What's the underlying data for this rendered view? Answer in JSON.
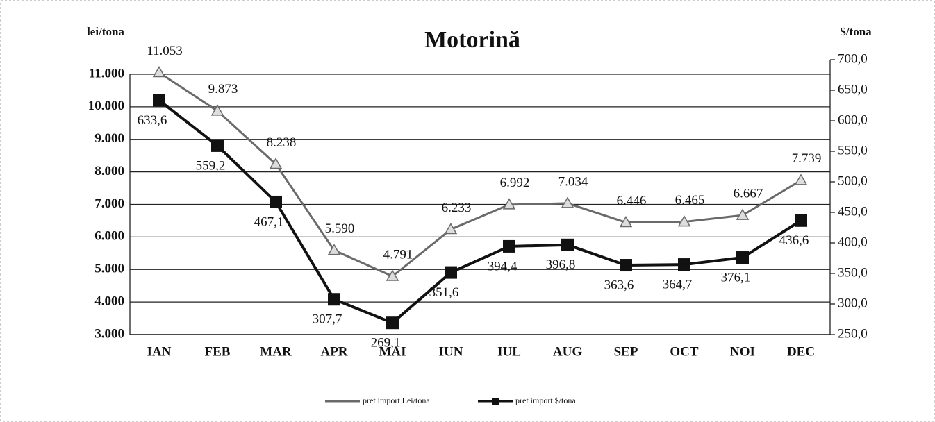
{
  "chart_data": {
    "type": "line",
    "title": "Motorină",
    "ylabel": "lei/tona",
    "y2label": "$/tona",
    "categories": [
      "IAN",
      "FEB",
      "MAR",
      "APR",
      "MAI",
      "IUN",
      "IUL",
      "AUG",
      "SEP",
      "OCT",
      "NOI",
      "DEC"
    ],
    "ylim": [
      3000,
      11000
    ],
    "yticks": [
      {
        "value": 3000,
        "label": "3.000"
      },
      {
        "value": 4000,
        "label": "4.000"
      },
      {
        "value": 5000,
        "label": "5.000"
      },
      {
        "value": 6000,
        "label": "6.000"
      },
      {
        "value": 7000,
        "label": "7.000"
      },
      {
        "value": 8000,
        "label": "8.000"
      },
      {
        "value": 9000,
        "label": "9.000"
      },
      {
        "value": 10000,
        "label": "10.000"
      },
      {
        "value": 11000,
        "label": "11.000"
      }
    ],
    "y2lim": [
      250,
      700
    ],
    "y2ticks": [
      {
        "value": 250,
        "label": "250,0"
      },
      {
        "value": 300,
        "label": "300,0"
      },
      {
        "value": 350,
        "label": "350,0"
      },
      {
        "value": 400,
        "label": "400,0"
      },
      {
        "value": 450,
        "label": "450,0"
      },
      {
        "value": 500,
        "label": "500,0"
      },
      {
        "value": 550,
        "label": "550,0"
      },
      {
        "value": 600,
        "label": "600,0"
      },
      {
        "value": 650,
        "label": "650,0"
      },
      {
        "value": 700,
        "label": "700,0"
      }
    ],
    "grid": true,
    "legend": "bottom",
    "series": [
      {
        "name": "pret import Lei/tona",
        "color": "#6a6a6a",
        "marker": "triangle",
        "values": [
          11053,
          9873,
          8238,
          5590,
          4791,
          6233,
          6992,
          7034,
          6446,
          6465,
          6667,
          7739
        ],
        "value_labels": [
          "11.053",
          "9.873",
          "8.238",
          "5.590",
          "4.791",
          "6.233",
          "6.992",
          "7.034",
          "6.446",
          "6.465",
          "6.667",
          "7.739"
        ]
      },
      {
        "name": "pret import $/tona",
        "color": "#111111",
        "marker": "square",
        "axis": "y2",
        "values": [
          633.6,
          559.2,
          467.1,
          307.7,
          269.1,
          351.6,
          394.4,
          396.8,
          363.6,
          364.7,
          376.1,
          436.6
        ],
        "value_labels": [
          "633,6",
          "559,2",
          "467,1",
          "307,7",
          "269,1",
          "351,6",
          "394,4",
          "396,8",
          "363,6",
          "364,7",
          "376,1",
          "436,6"
        ]
      }
    ]
  }
}
